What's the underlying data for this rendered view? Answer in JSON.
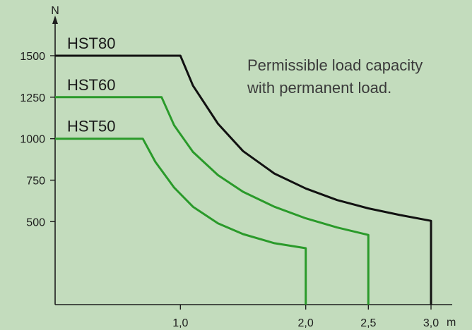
{
  "chart_data": {
    "type": "line",
    "title": "",
    "xlabel": "m",
    "ylabel": "N",
    "xlim": [
      0,
      3.0
    ],
    "ylim": [
      0,
      1500
    ],
    "x_ticks": [
      {
        "value": 1.0,
        "label": "1,0"
      },
      {
        "value": 2.0,
        "label": "2,0"
      },
      {
        "value": 2.5,
        "label": "2,5"
      },
      {
        "value": 3.0,
        "label": "3,0"
      }
    ],
    "y_ticks": [
      {
        "value": 500,
        "label": "500"
      },
      {
        "value": 750,
        "label": "750"
      },
      {
        "value": 1000,
        "label": "1000"
      },
      {
        "value": 1250,
        "label": "1250"
      },
      {
        "value": 1500,
        "label": "1500"
      }
    ],
    "grid": false,
    "annotation": [
      "Permissible load capacity",
      "with permanent load."
    ],
    "series": [
      {
        "name": "HST80",
        "color": "#111111",
        "x": [
          0,
          1.0,
          1.1,
          1.3,
          1.5,
          1.75,
          2.0,
          2.25,
          2.5,
          2.75,
          3.0,
          3.0
        ],
        "y": [
          1500,
          1500,
          1320,
          1090,
          925,
          790,
          700,
          630,
          580,
          540,
          505,
          0
        ]
      },
      {
        "name": "HST60",
        "color": "#2a9a2a",
        "x": [
          0,
          0.85,
          0.95,
          1.1,
          1.3,
          1.5,
          1.75,
          2.0,
          2.25,
          2.5,
          2.5
        ],
        "y": [
          1250,
          1250,
          1080,
          920,
          780,
          680,
          590,
          520,
          465,
          420,
          0
        ]
      },
      {
        "name": "HST50",
        "color": "#2a9a2a",
        "x": [
          0,
          0.7,
          0.8,
          0.95,
          1.1,
          1.3,
          1.5,
          1.75,
          2.0,
          2.0
        ],
        "y": [
          1000,
          1000,
          860,
          705,
          590,
          490,
          425,
          370,
          340,
          0
        ]
      }
    ]
  }
}
